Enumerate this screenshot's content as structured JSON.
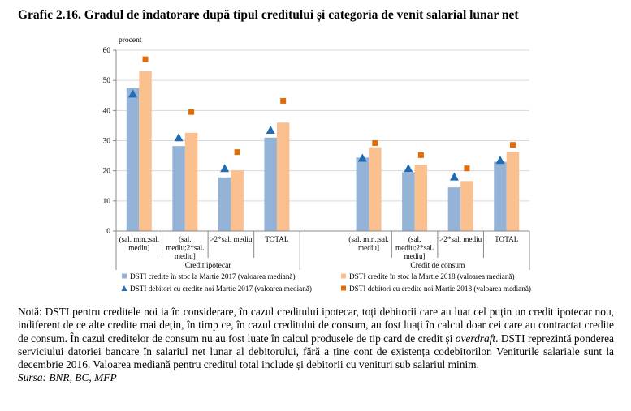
{
  "title": "Grafic 2.16. Gradul de îndatorare după tipul creditului și categoria de venit salarial lunar net",
  "chart_data": {
    "type": "bar",
    "ylabel": "procent",
    "ylim": [
      0,
      60
    ],
    "yticks": [
      "0",
      "10",
      "20",
      "30",
      "40",
      "50",
      "60"
    ],
    "groups": [
      {
        "name": "Credit ipotecar",
        "categories": [
          [
            "(sal. min.;sal.",
            "mediu]"
          ],
          [
            "(sal.",
            "mediu;2*sal.",
            "mediu]"
          ],
          [
            ">2*sal. mediu"
          ],
          [
            "TOTAL"
          ]
        ]
      },
      {
        "name": "Credit de consum",
        "categories": [
          [
            "(sal. min.;sal.",
            "mediu]"
          ],
          [
            "(sal.",
            "mediu;2*sal.",
            "mediu]"
          ],
          [
            ">2*sal. mediu"
          ],
          [
            "TOTAL"
          ]
        ]
      }
    ],
    "series": [
      {
        "name": "DSTI credite în stoc la Martie 2017 (valoarea mediană)",
        "kind": "bar",
        "color": "#95b3d7",
        "values": [
          47.5,
          28.2,
          17.8,
          31.0,
          24.4,
          19.5,
          14.5,
          23.0
        ]
      },
      {
        "name": "DSTI credite în stoc la Martie 2018 (valoarea mediană)",
        "kind": "bar",
        "color": "#fac090",
        "values": [
          53.0,
          32.6,
          20.2,
          36.0,
          27.8,
          22.0,
          16.6,
          26.3
        ]
      },
      {
        "name": "DSTI debitori cu credite noi Martie 2017 (valoarea mediană)",
        "kind": "triangle",
        "color": "#1f6bb5",
        "values": [
          45.5,
          31.0,
          20.8,
          33.5,
          24.2,
          20.8,
          18.0,
          23.5
        ]
      },
      {
        "name": "DSTI debitori cu credite noi Martie 2018 (valoarea mediană)",
        "kind": "square",
        "color": "#e36c0a",
        "values": [
          57.0,
          39.5,
          26.2,
          43.2,
          29.2,
          25.2,
          20.8,
          28.6
        ]
      }
    ]
  },
  "notes": {
    "paragraph": {
      "p1": "Notă: DSTI pentru creditele noi ia în considerare, în cazul creditului ipotecar, toți debitorii care au luat cel puțin un credit ipotecar nou, indiferent de ce alte credite mai dețin, în timp ce, în cazul creditului de consum, au fost luați în calcul doar cei care au contractat credite de consum. În cazul creditelor de consum nu au fost luate în calcul produsele de tip card de credit și ",
      "p_italic": "overdraft",
      "p2": ". DSTI reprezintă ponderea serviciului datoriei bancare în salariul net lunar al debitorului, fără a ține cont de existența codebitorilor. Veniturile salariale sunt la decembrie 2016. Valoarea mediană pentru creditul total include și debitorii cu venituri sub salariul minim."
    },
    "source": "Sursa: BNR, BC, MFP"
  }
}
